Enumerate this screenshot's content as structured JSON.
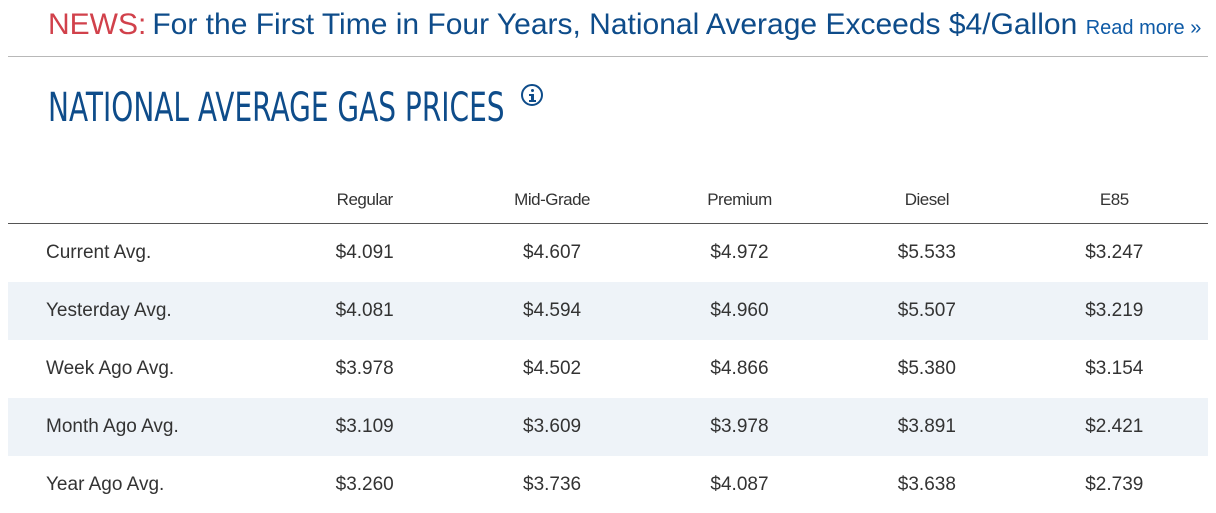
{
  "news": {
    "label": "NEWS:",
    "headline": "For the First Time in Four Years, National Average Exceeds $4/Gallon",
    "read_more": "Read more »"
  },
  "section": {
    "title": "NATIONAL AVERAGE GAS PRICES",
    "info_icon": "info-icon"
  },
  "table": {
    "columns": [
      "",
      "Regular",
      "Mid-Grade",
      "Premium",
      "Diesel",
      "E85"
    ],
    "rows": [
      {
        "label": "Current Avg.",
        "values": [
          "$4.091",
          "$4.607",
          "$4.972",
          "$5.533",
          "$3.247"
        ]
      },
      {
        "label": "Yesterday Avg.",
        "values": [
          "$4.081",
          "$4.594",
          "$4.960",
          "$5.507",
          "$3.219"
        ]
      },
      {
        "label": "Week Ago Avg.",
        "values": [
          "$3.978",
          "$4.502",
          "$4.866",
          "$5.380",
          "$3.154"
        ]
      },
      {
        "label": "Month Ago Avg.",
        "values": [
          "$3.109",
          "$3.609",
          "$3.978",
          "$3.891",
          "$2.421"
        ]
      },
      {
        "label": "Year Ago Avg.",
        "values": [
          "$3.260",
          "$3.736",
          "$4.087",
          "$3.638",
          "$2.739"
        ]
      }
    ]
  },
  "colors": {
    "news_label": "#d1414b",
    "headline": "#0e4c8a",
    "link": "#0e5aa6",
    "row_alt_bg": "#eef3f8"
  }
}
